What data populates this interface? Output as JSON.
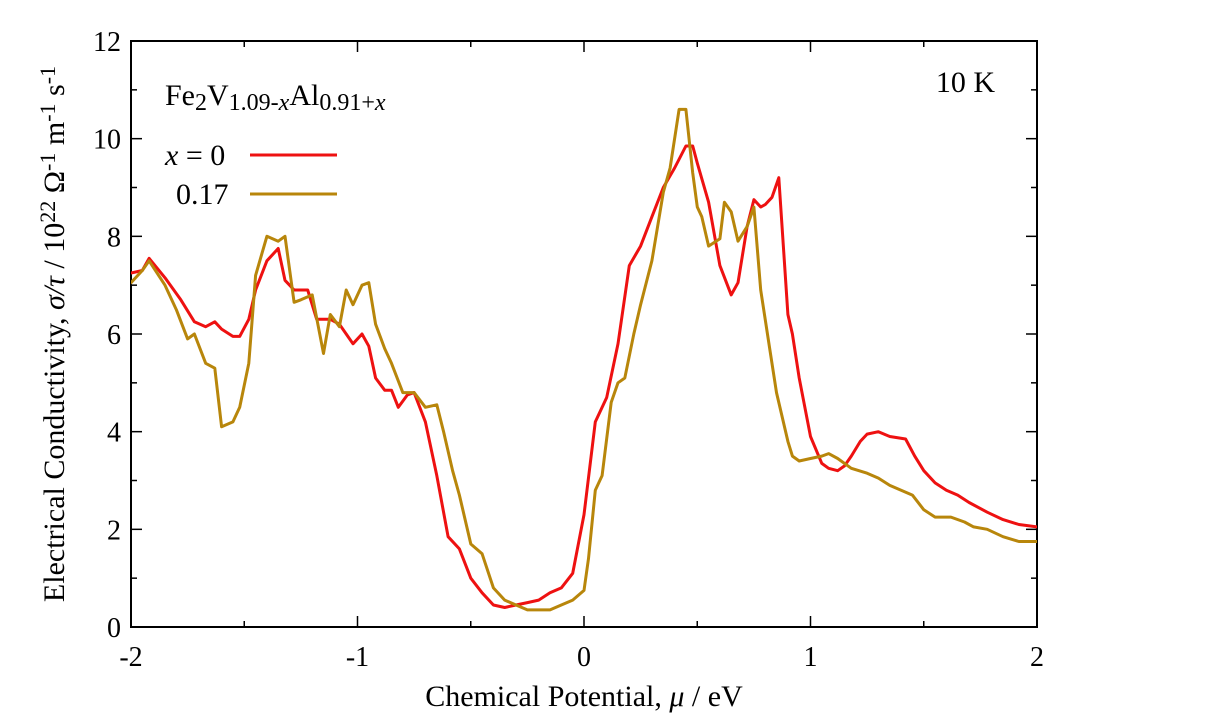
{
  "chart_data": {
    "type": "line",
    "annotation": "10 K",
    "legend_title": {
      "parts": [
        {
          "text": "Fe",
          "style": "normal"
        },
        {
          "text": "2",
          "style": "sub"
        },
        {
          "text": "V",
          "style": "normal"
        },
        {
          "text": "1.09-",
          "style": "sub"
        },
        {
          "text": "x",
          "style": "sub-italic"
        },
        {
          "text": "Al",
          "style": "normal"
        },
        {
          "text": "0.91+",
          "style": "sub"
        },
        {
          "text": "x",
          "style": "sub-italic"
        }
      ]
    },
    "xlabel": {
      "prefix": "Chemical Potential, ",
      "symbol": "μ",
      "suffix": " / eV"
    },
    "ylabel": {
      "prefix": "Electrical Conductivity, ",
      "symbol": "σ/τ",
      "suffix": " / 10",
      "exp": "22",
      "unit": " Ω",
      "unit_exp1": "-1",
      "unit_m": " m",
      "unit_exp2": "-1",
      "unit_s": " s",
      "unit_exp3": "-1"
    },
    "xlim": [
      -2,
      2
    ],
    "ylim": [
      0,
      12
    ],
    "xticks": [
      "-2",
      "-1",
      "0",
      "1",
      "2"
    ],
    "xtick_values": [
      -2,
      -1,
      0,
      1,
      2
    ],
    "yticks": [
      "0",
      "2",
      "4",
      "6",
      "8",
      "10",
      "12"
    ],
    "ytick_values": [
      0,
      2,
      4,
      6,
      8,
      10,
      12
    ],
    "legend_position": "top-left",
    "grid": false,
    "series": [
      {
        "name_prefix": "x",
        "name_suffix": " = 0",
        "color": "#ee1111",
        "x": [
          -2.0,
          -1.95,
          -1.92,
          -1.85,
          -1.78,
          -1.72,
          -1.67,
          -1.63,
          -1.6,
          -1.55,
          -1.52,
          -1.48,
          -1.45,
          -1.4,
          -1.35,
          -1.32,
          -1.28,
          -1.22,
          -1.18,
          -1.12,
          -1.08,
          -1.05,
          -1.02,
          -0.98,
          -0.95,
          -0.92,
          -0.88,
          -0.85,
          -0.82,
          -0.78,
          -0.75,
          -0.7,
          -0.65,
          -0.6,
          -0.55,
          -0.5,
          -0.45,
          -0.4,
          -0.35,
          -0.3,
          -0.25,
          -0.2,
          -0.15,
          -0.1,
          -0.05,
          0.0,
          0.05,
          0.1,
          0.15,
          0.2,
          0.25,
          0.3,
          0.35,
          0.4,
          0.45,
          0.48,
          0.5,
          0.55,
          0.6,
          0.65,
          0.68,
          0.72,
          0.75,
          0.78,
          0.8,
          0.83,
          0.86,
          0.9,
          0.92,
          0.95,
          1.0,
          1.05,
          1.08,
          1.12,
          1.15,
          1.18,
          1.22,
          1.25,
          1.3,
          1.35,
          1.42,
          1.46,
          1.5,
          1.55,
          1.6,
          1.65,
          1.7,
          1.78,
          1.85,
          1.92,
          2.0
        ],
        "y": [
          7.25,
          7.3,
          7.55,
          7.15,
          6.7,
          6.25,
          6.15,
          6.25,
          6.1,
          5.95,
          5.95,
          6.3,
          6.9,
          7.5,
          7.75,
          7.1,
          6.9,
          6.9,
          6.3,
          6.3,
          6.2,
          6.0,
          5.8,
          6.0,
          5.75,
          5.1,
          4.85,
          4.85,
          4.5,
          4.75,
          4.8,
          4.2,
          3.1,
          1.85,
          1.6,
          1.0,
          0.7,
          0.45,
          0.4,
          0.45,
          0.5,
          0.55,
          0.7,
          0.8,
          1.1,
          2.3,
          4.2,
          4.7,
          5.8,
          7.4,
          7.8,
          8.4,
          9.0,
          9.4,
          9.85,
          9.85,
          9.5,
          8.7,
          7.4,
          6.8,
          7.05,
          8.2,
          8.75,
          8.6,
          8.65,
          8.8,
          9.2,
          6.4,
          6.0,
          5.1,
          3.9,
          3.35,
          3.25,
          3.2,
          3.3,
          3.5,
          3.8,
          3.95,
          4.0,
          3.9,
          3.85,
          3.5,
          3.2,
          2.95,
          2.8,
          2.7,
          2.55,
          2.35,
          2.2,
          2.1,
          2.05
        ]
      },
      {
        "name_prefix": "",
        "name_suffix": "0.17",
        "color": "#b8860b",
        "x": [
          -2.0,
          -1.95,
          -1.92,
          -1.85,
          -1.8,
          -1.75,
          -1.72,
          -1.67,
          -1.63,
          -1.6,
          -1.55,
          -1.52,
          -1.48,
          -1.45,
          -1.4,
          -1.35,
          -1.32,
          -1.28,
          -1.25,
          -1.2,
          -1.15,
          -1.12,
          -1.08,
          -1.05,
          -1.02,
          -0.98,
          -0.95,
          -0.92,
          -0.88,
          -0.85,
          -0.8,
          -0.75,
          -0.7,
          -0.65,
          -0.62,
          -0.58,
          -0.55,
          -0.5,
          -0.45,
          -0.4,
          -0.35,
          -0.3,
          -0.25,
          -0.2,
          -0.15,
          -0.1,
          -0.05,
          0.0,
          0.02,
          0.05,
          0.08,
          0.12,
          0.15,
          0.18,
          0.22,
          0.25,
          0.3,
          0.35,
          0.38,
          0.42,
          0.45,
          0.48,
          0.5,
          0.52,
          0.55,
          0.6,
          0.62,
          0.65,
          0.68,
          0.72,
          0.75,
          0.78,
          0.82,
          0.85,
          0.9,
          0.92,
          0.95,
          1.0,
          1.05,
          1.08,
          1.12,
          1.18,
          1.25,
          1.3,
          1.35,
          1.45,
          1.5,
          1.55,
          1.62,
          1.68,
          1.72,
          1.78,
          1.85,
          1.92,
          2.0
        ],
        "y": [
          7.05,
          7.3,
          7.5,
          7.0,
          6.5,
          5.9,
          6.0,
          5.4,
          5.3,
          4.1,
          4.2,
          4.5,
          5.4,
          7.2,
          8.0,
          7.9,
          8.0,
          6.65,
          6.7,
          6.8,
          5.6,
          6.4,
          6.15,
          6.9,
          6.6,
          7.0,
          7.05,
          6.2,
          5.7,
          5.4,
          4.8,
          4.8,
          4.5,
          4.55,
          4.0,
          3.2,
          2.7,
          1.7,
          1.5,
          0.8,
          0.55,
          0.45,
          0.35,
          0.35,
          0.35,
          0.45,
          0.55,
          0.75,
          1.4,
          2.8,
          3.1,
          4.6,
          5.0,
          5.1,
          6.0,
          6.6,
          7.5,
          8.9,
          9.4,
          10.6,
          10.6,
          9.3,
          8.6,
          8.4,
          7.8,
          7.95,
          8.7,
          8.5,
          7.9,
          8.2,
          8.6,
          6.9,
          5.7,
          4.8,
          3.8,
          3.5,
          3.4,
          3.45,
          3.5,
          3.55,
          3.45,
          3.25,
          3.15,
          3.05,
          2.9,
          2.7,
          2.4,
          2.25,
          2.25,
          2.15,
          2.05,
          2.0,
          1.85,
          1.75,
          1.75
        ]
      }
    ]
  }
}
